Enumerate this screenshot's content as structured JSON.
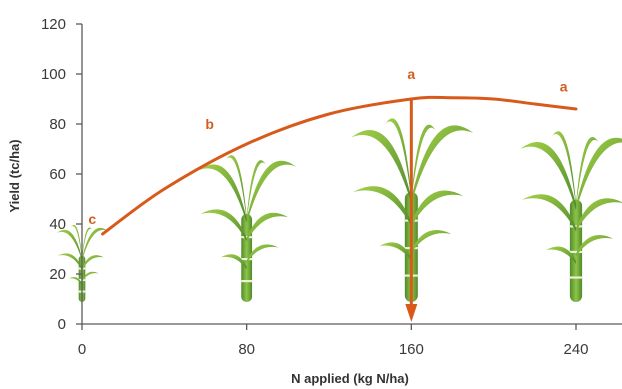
{
  "chart_data": {
    "type": "line",
    "xlabel": "N applied (kg N/ha)",
    "ylabel": "Yield (tc/ha)",
    "xlim": [
      0,
      240
    ],
    "ylim": [
      0,
      120
    ],
    "x_ticks": [
      "0",
      "80",
      "160",
      "240"
    ],
    "y_ticks": [
      "0",
      "20",
      "40",
      "60",
      "80",
      "100",
      "120"
    ],
    "grid": false,
    "series": [
      {
        "x": [
          10,
          40,
          80,
          120,
          160,
          180,
          200,
          220,
          240
        ],
        "y": [
          36,
          54,
          72,
          84,
          90,
          90.5,
          90,
          88,
          86
        ]
      }
    ],
    "annotations": [
      {
        "text": "c",
        "x": 5,
        "y": 40
      },
      {
        "text": "b",
        "x": 62,
        "y": 78
      },
      {
        "text": "a",
        "x": 160,
        "y": 98
      },
      {
        "text": "a",
        "x": 234,
        "y": 93
      }
    ],
    "optimum_arrow": {
      "x": 160,
      "y_from": 90,
      "y_to": 0
    },
    "plant_x": [
      0,
      80,
      160,
      240
    ],
    "colors": {
      "curve": "#d85a1a",
      "label": "#d35e1e",
      "axis": "#5a5a5a",
      "leaf_light": "#8cc23e",
      "leaf_dark": "#4e8a2b",
      "stem": "#6ea63a"
    }
  }
}
